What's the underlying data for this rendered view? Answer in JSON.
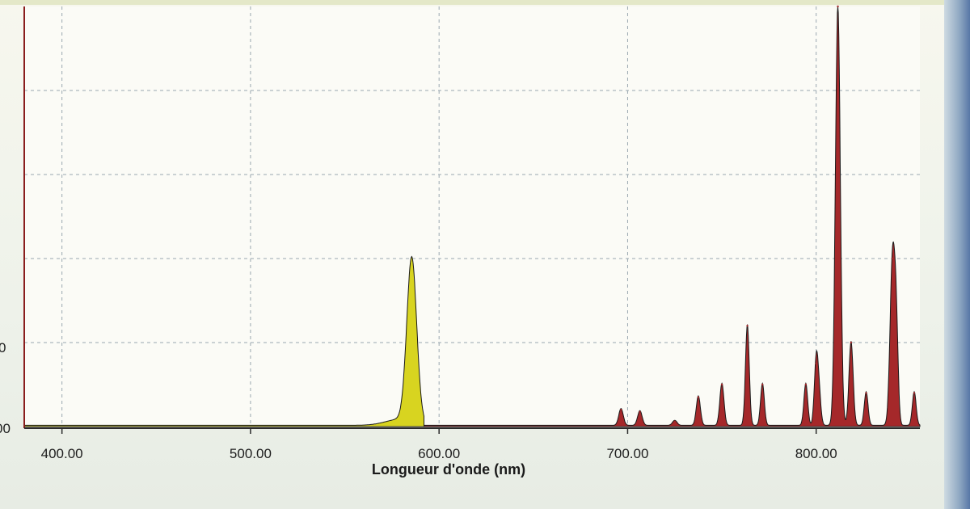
{
  "colors": {
    "background": "#f7f7ee",
    "grid": "#9aa7b0",
    "yellow_series": "#d8d420",
    "red_series": "#a5282a",
    "outline": "#1a1a1a"
  },
  "chart_data": {
    "type": "area",
    "xlabel": "Longueur d'onde (nm)",
    "ylabel": "",
    "xlim": [
      380,
      855
    ],
    "ylim": [
      0,
      1
    ],
    "grid": true,
    "legend": "none",
    "x_ticks": [
      "400.00",
      "500.00",
      "600.00",
      "700.00",
      "800.00"
    ],
    "y_tick_labels_partial": [
      "0",
      "00"
    ],
    "peaks": [
      {
        "series": "yellow",
        "x": 585.5,
        "y": 0.39,
        "width": 2.6
      },
      {
        "series": "yellow",
        "x": 580,
        "y": 0.015,
        "width": 8
      },
      {
        "series": "red",
        "x": 696.5,
        "y": 0.04,
        "width": 1.2
      },
      {
        "series": "red",
        "x": 706.5,
        "y": 0.035,
        "width": 1.2
      },
      {
        "series": "red",
        "x": 725,
        "y": 0.012,
        "width": 1.2
      },
      {
        "series": "red",
        "x": 737.5,
        "y": 0.07,
        "width": 1.1
      },
      {
        "series": "red",
        "x": 750,
        "y": 0.1,
        "width": 1.1
      },
      {
        "series": "red",
        "x": 763.5,
        "y": 0.24,
        "width": 1.0
      },
      {
        "series": "red",
        "x": 771.5,
        "y": 0.1,
        "width": 1.0
      },
      {
        "series": "red",
        "x": 794.5,
        "y": 0.1,
        "width": 1.0
      },
      {
        "series": "red",
        "x": 800,
        "y": 0.15,
        "width": 1.0
      },
      {
        "series": "red",
        "x": 801.5,
        "y": 0.07,
        "width": 1.0
      },
      {
        "series": "red",
        "x": 811.5,
        "y": 1.0,
        "width": 1.3
      },
      {
        "series": "red",
        "x": 818.5,
        "y": 0.2,
        "width": 1.1
      },
      {
        "series": "red",
        "x": 826.5,
        "y": 0.08,
        "width": 1.0
      },
      {
        "series": "red",
        "x": 840.5,
        "y": 0.4,
        "width": 1.3
      },
      {
        "series": "red",
        "x": 842.5,
        "y": 0.2,
        "width": 1.0
      },
      {
        "series": "red",
        "x": 852,
        "y": 0.08,
        "width": 1.0
      }
    ]
  }
}
